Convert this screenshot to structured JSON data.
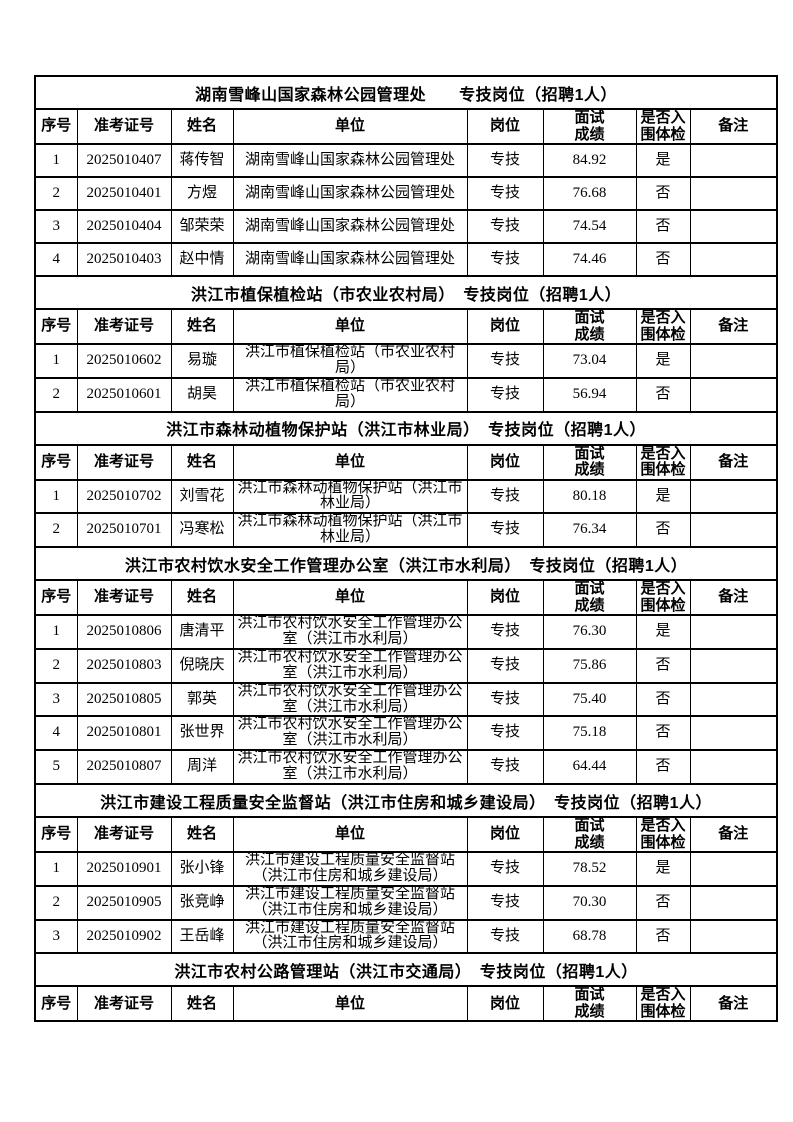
{
  "table": {
    "columns": [
      {
        "key": "no",
        "label": "序号"
      },
      {
        "key": "ticket",
        "label": "准考证号"
      },
      {
        "key": "name",
        "label": "姓名"
      },
      {
        "key": "unit",
        "label": "单位"
      },
      {
        "key": "post",
        "label": "岗位"
      },
      {
        "key": "score",
        "label": "面试\n成绩"
      },
      {
        "key": "shortlisted",
        "label": "是否入\n围体检"
      },
      {
        "key": "note",
        "label": "备注"
      }
    ],
    "sections": [
      {
        "title": "湖南雪峰山国家森林公园管理处　　专技岗位（招聘1人）",
        "rows": [
          {
            "no": "1",
            "ticket": "2025010407",
            "name": "蒋传智",
            "unit": "湖南雪峰山国家森林公园管理处",
            "post": "专技",
            "score": "84.92",
            "shortlisted": "是",
            "note": ""
          },
          {
            "no": "2",
            "ticket": "2025010401",
            "name": "方煜",
            "unit": "湖南雪峰山国家森林公园管理处",
            "post": "专技",
            "score": "76.68",
            "shortlisted": "否",
            "note": ""
          },
          {
            "no": "3",
            "ticket": "2025010404",
            "name": "邹荣荣",
            "unit": "湖南雪峰山国家森林公园管理处",
            "post": "专技",
            "score": "74.54",
            "shortlisted": "否",
            "note": ""
          },
          {
            "no": "4",
            "ticket": "2025010403",
            "name": "赵中情",
            "unit": "湖南雪峰山国家森林公园管理处",
            "post": "专技",
            "score": "74.46",
            "shortlisted": "否",
            "note": ""
          }
        ]
      },
      {
        "title": "洪江市植保植检站（市农业农村局）　专技岗位（招聘1人）",
        "rows": [
          {
            "no": "1",
            "ticket": "2025010602",
            "name": "易璇",
            "unit": "洪江市植保植检站（市农业农村局）",
            "post": "专技",
            "score": "73.04",
            "shortlisted": "是",
            "note": ""
          },
          {
            "no": "2",
            "ticket": "2025010601",
            "name": "胡昊",
            "unit": "洪江市植保植检站（市农业农村局）",
            "post": "专技",
            "score": "56.94",
            "shortlisted": "否",
            "note": ""
          }
        ]
      },
      {
        "title": "洪江市森林动植物保护站（洪江市林业局）　专技岗位（招聘1人）",
        "rows": [
          {
            "no": "1",
            "ticket": "2025010702",
            "name": "刘雪花",
            "unit": "洪江市森林动植物保护站（洪江市林业局）",
            "post": "专技",
            "score": "80.18",
            "shortlisted": "是",
            "note": ""
          },
          {
            "no": "2",
            "ticket": "2025010701",
            "name": "冯寒松",
            "unit": "洪江市森林动植物保护站（洪江市林业局）",
            "post": "专技",
            "score": "76.34",
            "shortlisted": "否",
            "note": ""
          }
        ]
      },
      {
        "title": "洪江市农村饮水安全工作管理办公室（洪江市水利局）　专技岗位（招聘1人）",
        "rows": [
          {
            "no": "1",
            "ticket": "2025010806",
            "name": "唐清平",
            "unit": "洪江市农村饮水安全工作管理办公室（洪江市水利局）",
            "post": "专技",
            "score": "76.30",
            "shortlisted": "是",
            "note": ""
          },
          {
            "no": "2",
            "ticket": "2025010803",
            "name": "倪晓庆",
            "unit": "洪江市农村饮水安全工作管理办公室（洪江市水利局）",
            "post": "专技",
            "score": "75.86",
            "shortlisted": "否",
            "note": ""
          },
          {
            "no": "3",
            "ticket": "2025010805",
            "name": "郭英",
            "unit": "洪江市农村饮水安全工作管理办公室（洪江市水利局）",
            "post": "专技",
            "score": "75.40",
            "shortlisted": "否",
            "note": ""
          },
          {
            "no": "4",
            "ticket": "2025010801",
            "name": "张世界",
            "unit": "洪江市农村饮水安全工作管理办公室（洪江市水利局）",
            "post": "专技",
            "score": "75.18",
            "shortlisted": "否",
            "note": ""
          },
          {
            "no": "5",
            "ticket": "2025010807",
            "name": "周洋",
            "unit": "洪江市农村饮水安全工作管理办公室（洪江市水利局）",
            "post": "专技",
            "score": "64.44",
            "shortlisted": "否",
            "note": ""
          }
        ]
      },
      {
        "title": "洪江市建设工程质量安全监督站（洪江市住房和城乡建设局）　专技岗位（招聘1人）",
        "rows": [
          {
            "no": "1",
            "ticket": "2025010901",
            "name": "张小锋",
            "unit": "洪江市建设工程质量安全监督站（洪江市住房和城乡建设局）",
            "post": "专技",
            "score": "78.52",
            "shortlisted": "是",
            "note": ""
          },
          {
            "no": "2",
            "ticket": "2025010905",
            "name": "张竞峥",
            "unit": "洪江市建设工程质量安全监督站（洪江市住房和城乡建设局）",
            "post": "专技",
            "score": "70.30",
            "shortlisted": "否",
            "note": ""
          },
          {
            "no": "3",
            "ticket": "2025010902",
            "name": "王岳峰",
            "unit": "洪江市建设工程质量安全监督站（洪江市住房和城乡建设局）",
            "post": "专技",
            "score": "68.78",
            "shortlisted": "否",
            "note": ""
          }
        ]
      },
      {
        "title": "洪江市农村公路管理站（洪江市交通局）　专技岗位（招聘1人）",
        "rows": []
      }
    ]
  }
}
